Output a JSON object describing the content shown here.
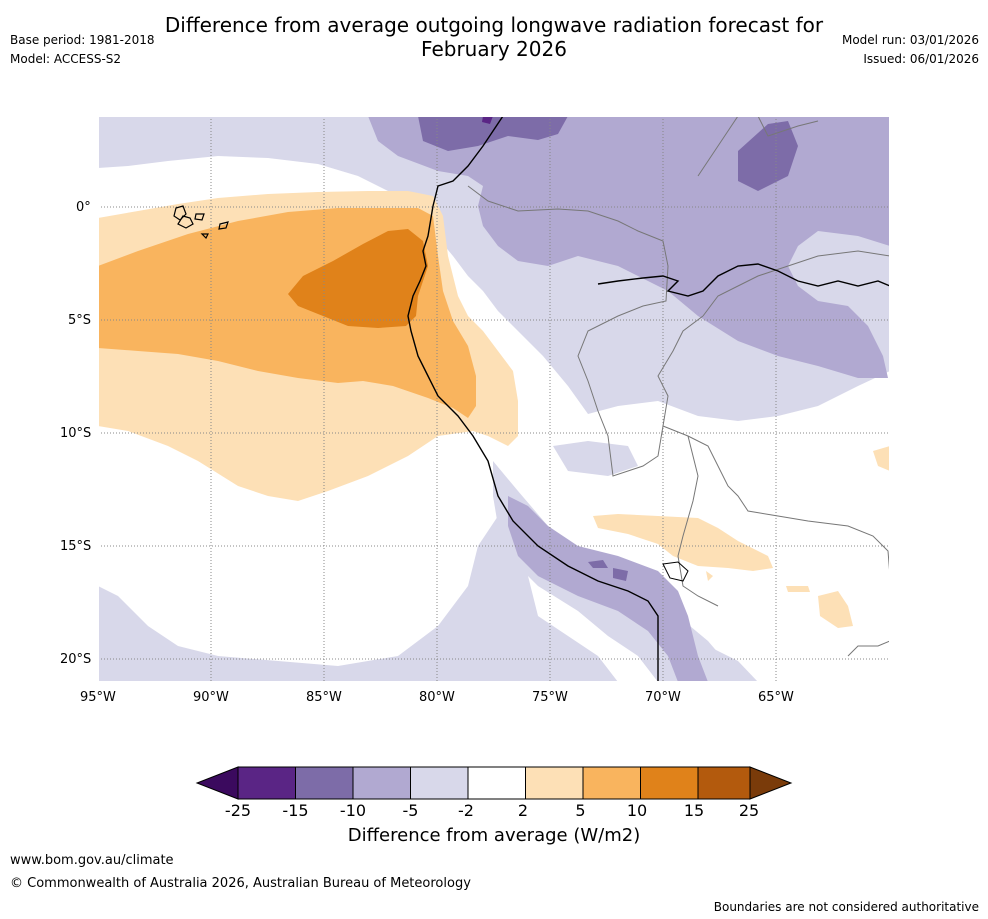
{
  "header": {
    "base_period": "Base period: 1981-2018",
    "model": "Model: ACCESS-S2",
    "title_line1": "Difference from average outgoing longwave radiation forecast for",
    "title_line2": "February 2026",
    "model_run": "Model run: 03/01/2026",
    "issued": "Issued: 06/01/2026"
  },
  "map": {
    "lon_labels": [
      "95°W",
      "90°W",
      "85°W",
      "80°W",
      "75°W",
      "70°W",
      "65°W"
    ],
    "lat_labels": [
      "0°",
      "5°S",
      "10°S",
      "15°S",
      "20°S"
    ],
    "extent": {
      "lon_min": -95,
      "lon_max": -60,
      "lat_min": -21,
      "lat_max": 4
    }
  },
  "colorbar": {
    "ticks": [
      "-25",
      "-15",
      "-10",
      "-5",
      "-2",
      "2",
      "5",
      "10",
      "15",
      "25"
    ],
    "colors": [
      "#3b0a5e",
      "#5a2585",
      "#7d6ca8",
      "#b1a9d1",
      "#d8d8ea",
      "#ffffff",
      "#fde0b6",
      "#f9b45e",
      "#e0821a",
      "#b35a0d",
      "#7a3b0a"
    ],
    "label": "Difference from average (W/m2)"
  },
  "footer": {
    "url": "www.bom.gov.au/climate",
    "copyright": "© Commonwealth of Australia 2026, Australian Bureau of Meteorology",
    "disclaimer": "Boundaries are not considered authoritative"
  }
}
